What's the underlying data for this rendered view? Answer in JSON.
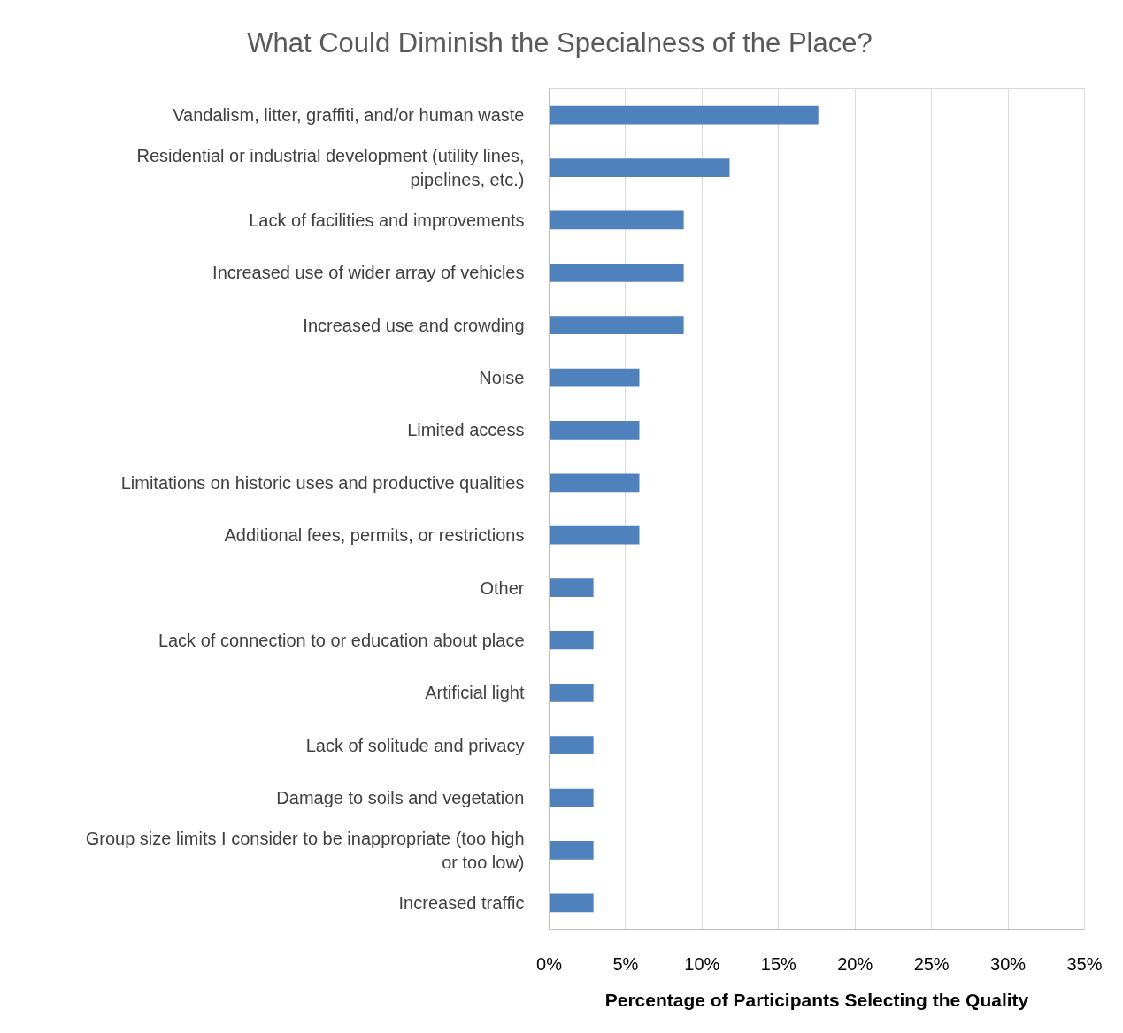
{
  "chart_data": {
    "type": "bar",
    "orientation": "horizontal",
    "title": "What Could Diminish the Specialness of the Place?",
    "xlabel": "Percentage of Participants Selecting the Quality",
    "categories": [
      "Vandalism, litter, graffiti, and/or human waste",
      "Residential or industrial development (utility lines, pipelines, etc.)",
      "Lack of facilities and improvements",
      "Increased use of wider array of vehicles",
      "Increased use and crowding",
      "Noise",
      "Limited access",
      "Limitations on historic uses and productive qualities",
      "Additional fees, permits, or restrictions",
      "Other",
      "Lack of connection to or education about place",
      "Artificial light",
      "Lack of solitude and privacy",
      "Damage to soils and vegetation",
      "Group size limits I consider to be inappropriate (too high or too low)",
      "Increased traffic"
    ],
    "values": [
      17.6,
      11.8,
      8.8,
      8.8,
      8.8,
      5.9,
      5.9,
      5.9,
      5.9,
      2.9,
      2.9,
      2.9,
      2.9,
      2.9,
      2.9,
      2.9
    ],
    "color": "#4f81bd",
    "xlim": [
      0,
      35
    ],
    "xticks": [
      {
        "value": 0,
        "label": "0%"
      },
      {
        "value": 5,
        "label": "5%"
      },
      {
        "value": 10,
        "label": "10%"
      },
      {
        "value": 15,
        "label": "15%"
      },
      {
        "value": 20,
        "label": "20%"
      },
      {
        "value": 25,
        "label": "25%"
      },
      {
        "value": 30,
        "label": "30%"
      },
      {
        "value": 35,
        "label": "35%"
      }
    ],
    "grid": "x"
  }
}
